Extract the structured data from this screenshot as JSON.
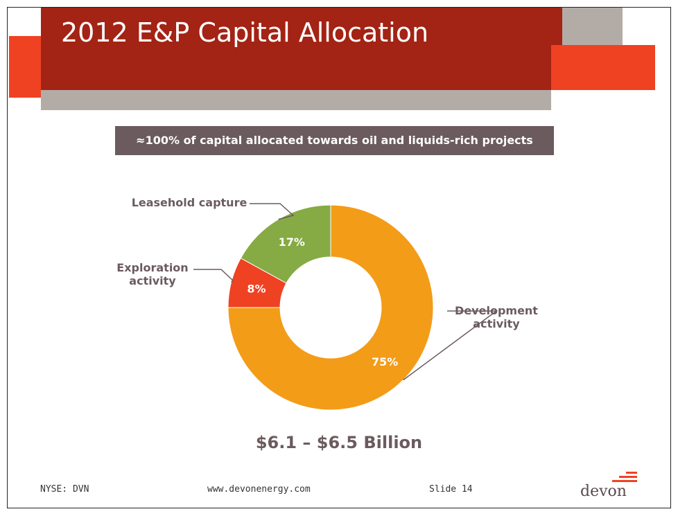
{
  "slide": {
    "title": "2012 E&P Capital Allocation",
    "banner": "≈100% of capital allocated towards oil and liquids-rich projects",
    "total": "$6.1 – $6.5 Billion"
  },
  "footer": {
    "ticker": "NYSE: DVN",
    "website": "www.devonenergy.com",
    "slide_number": "Slide 14"
  },
  "logo": {
    "text": "devon",
    "accent": "#ef4223"
  },
  "colors": {
    "header_red": "#a32314",
    "accent_orange": "#ef4223",
    "header_gray": "#b3aca6",
    "banner_bg": "#6b5b5e",
    "label_text": "#6b5b5e"
  },
  "chart_data": {
    "type": "pie",
    "style": "donut",
    "categories": [
      "Development activity",
      "Exploration activity",
      "Leasehold capture"
    ],
    "values": [
      75,
      8,
      17
    ],
    "labels": [
      "75%",
      "8%",
      "17%"
    ],
    "colors": [
      "#f39c18",
      "#ef4223",
      "#86aa44"
    ],
    "start": "12 o'clock",
    "direction": "clockwise"
  }
}
